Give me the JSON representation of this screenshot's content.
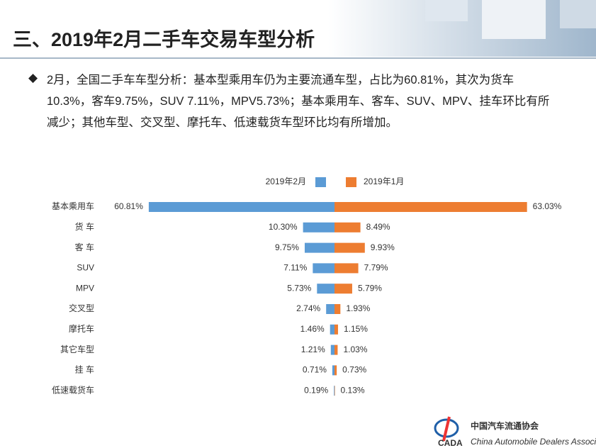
{
  "header": {
    "title": "三、2019年2月二手车交易车型分析"
  },
  "bullet": {
    "text": "2月，全国二手车车型分析：基本型乘用车仍为主要流通车型，占比为60.81%，其次为货车10.3%，客车9.75%，SUV 7.11%，MPV5.73%；基本乘用车、客车、SUV、MPV、挂车环比有所减少；其他车型、交叉型、摩托车、低速载货车型环比均有所增加。"
  },
  "chart_data": {
    "type": "butterfly",
    "legend": "top",
    "categories": [
      "基本乘用车",
      "货 车",
      "客 车",
      "SUV",
      "MPV",
      "交叉型",
      "摩托车",
      "其它车型",
      "挂 车",
      "低速载货车"
    ],
    "series": [
      {
        "name": "2019年2月",
        "color": "#5b9bd5",
        "values": [
          60.81,
          10.3,
          9.75,
          7.11,
          5.73,
          2.74,
          1.46,
          1.21,
          0.71,
          0.19
        ],
        "value_labels": [
          "60.81%",
          "10.30%",
          "9.75%",
          "7.11%",
          "5.73%",
          "2.74%",
          "1.46%",
          "1.21%",
          "0.71%",
          "0.19%"
        ]
      },
      {
        "name": "2019年1月",
        "color": "#ed7d31",
        "values": [
          63.03,
          8.49,
          9.93,
          7.79,
          5.79,
          1.93,
          1.15,
          1.03,
          0.73,
          0.13
        ],
        "value_labels": [
          "63.03%",
          "8.49%",
          "9.93%",
          "7.79%",
          "5.79%",
          "1.93%",
          "1.15%",
          "1.03%",
          "0.73%",
          "0.13%"
        ]
      }
    ]
  },
  "logo": {
    "name": "中国汽车流通协会",
    "english": "China Automobile Dealers Association",
    "abbr": "CADA"
  }
}
